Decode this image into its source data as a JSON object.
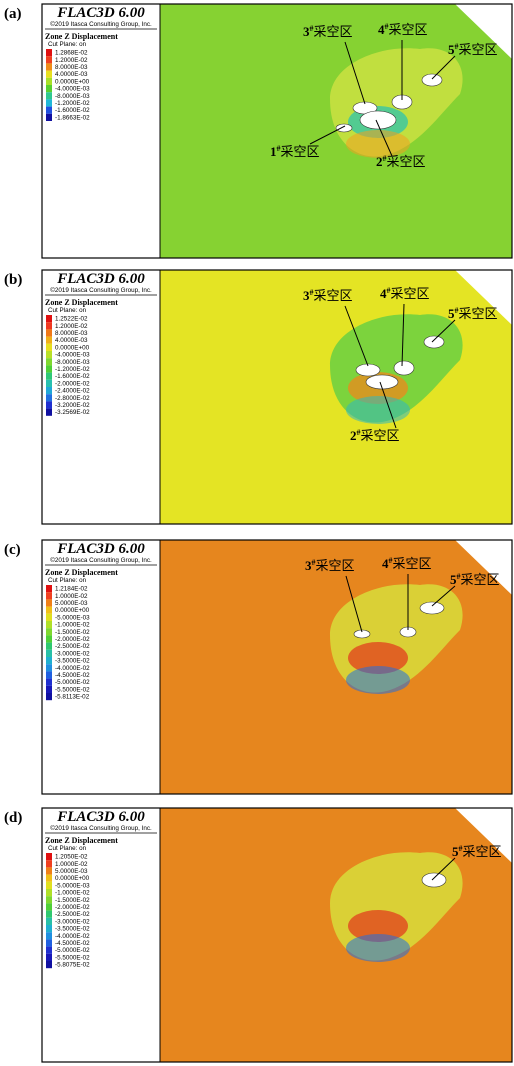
{
  "panels": [
    {
      "label": "(a)",
      "title": "FLAC3D 6.00",
      "copyright": "©2019 Itasca Consulting Group, Inc.",
      "heading": "Zone Z Displacement",
      "cut_plane": "Cut Plane: on",
      "legend": [
        {
          "text": "1.2868E-02",
          "color": "#e01010"
        },
        {
          "text": "1.2000E-02",
          "color": "#f04020"
        },
        {
          "text": "8.0000E-03",
          "color": "#f08c18"
        },
        {
          "text": "4.0000E-03",
          "color": "#e8e020"
        },
        {
          "text": "0.0000E+00",
          "color": "#a8e028"
        },
        {
          "text": "-4.0000E-03",
          "color": "#58d030"
        },
        {
          "text": "-8.0000E-03",
          "color": "#30c890"
        },
        {
          "text": "-1.2000E-02",
          "color": "#20b8d8"
        },
        {
          "text": "-1.6000E-02",
          "color": "#2050e0"
        },
        {
          "text": "-1.8663E-02",
          "color": "#1010a0"
        }
      ],
      "labels": [
        {
          "number": "3",
          "sup": "#",
          "text": "采空区"
        },
        {
          "number": "4",
          "sup": "#",
          "text": "采空区"
        },
        {
          "number": "5",
          "sup": "#",
          "text": "采空区"
        },
        {
          "number": "1",
          "sup": "#",
          "text": "采空区"
        },
        {
          "number": "2",
          "sup": "#",
          "text": "采空区"
        }
      ]
    },
    {
      "label": "(b)",
      "title": "FLAC3D 6.00",
      "copyright": "©2019 Itasca Consulting Group, Inc.",
      "heading": "Zone Z Displacement",
      "cut_plane": "Cut Plane: on",
      "legend": [
        {
          "text": "1.2522E-02",
          "color": "#e01010"
        },
        {
          "text": "1.2000E-02",
          "color": "#f03820"
        },
        {
          "text": "8.0000E-03",
          "color": "#f07818"
        },
        {
          "text": "4.0000E-03",
          "color": "#f0b018"
        },
        {
          "text": "0.0000E+00",
          "color": "#e8e020"
        },
        {
          "text": "-4.0000E-03",
          "color": "#b8e028"
        },
        {
          "text": "-8.0000E-03",
          "color": "#80d830"
        },
        {
          "text": "-1.2000E-02",
          "color": "#50d038"
        },
        {
          "text": "-1.6000E-02",
          "color": "#30c878"
        },
        {
          "text": "-2.0000E-02",
          "color": "#28c0b0"
        },
        {
          "text": "-2.4000E-02",
          "color": "#20a8d8"
        },
        {
          "text": "-2.8000E-02",
          "color": "#2070e0"
        },
        {
          "text": "-3.2000E-02",
          "color": "#2030d0"
        },
        {
          "text": "-3.2569E-02",
          "color": "#1010a0"
        }
      ],
      "labels": [
        {
          "number": "3",
          "sup": "#",
          "text": "采空区"
        },
        {
          "number": "4",
          "sup": "#",
          "text": "采空区"
        },
        {
          "number": "5",
          "sup": "#",
          "text": "采空区"
        },
        {
          "number": "2",
          "sup": "#",
          "text": "采空区"
        }
      ]
    },
    {
      "label": "(c)",
      "title": "FLAC3D 6.00",
      "copyright": "©2019 Itasca Consulting Group, Inc.",
      "heading": "Zone Z Displacement",
      "cut_plane": "Cut Plane: on",
      "legend": [
        {
          "text": "1.2184E-02",
          "color": "#e01010"
        },
        {
          "text": "1.0000E-02",
          "color": "#f04020"
        },
        {
          "text": "5.0000E-03",
          "color": "#f08018"
        },
        {
          "text": "0.0000E+00",
          "color": "#f0c018"
        },
        {
          "text": "-5.0000E-03",
          "color": "#e0e020"
        },
        {
          "text": "-1.0000E-02",
          "color": "#b0e028"
        },
        {
          "text": "-1.5000E-02",
          "color": "#80d830"
        },
        {
          "text": "-2.0000E-02",
          "color": "#50d038"
        },
        {
          "text": "-2.5000E-02",
          "color": "#30c870"
        },
        {
          "text": "-3.0000E-02",
          "color": "#28c0a8"
        },
        {
          "text": "-3.5000E-02",
          "color": "#20b0d0"
        },
        {
          "text": "-4.0000E-02",
          "color": "#2090e0"
        },
        {
          "text": "-4.5000E-02",
          "color": "#2060e0"
        },
        {
          "text": "-5.0000E-02",
          "color": "#2030d0"
        },
        {
          "text": "-5.5000E-02",
          "color": "#1818b8"
        },
        {
          "text": "-5.8113E-02",
          "color": "#1010a0"
        }
      ],
      "labels": [
        {
          "number": "3",
          "sup": "#",
          "text": "采空区"
        },
        {
          "number": "4",
          "sup": "#",
          "text": "采空区"
        },
        {
          "number": "5",
          "sup": "#",
          "text": "采空区"
        }
      ]
    },
    {
      "label": "(d)",
      "title": "FLAC3D 6.00",
      "copyright": "©2019 Itasca Consulting Group, Inc.",
      "heading": "Zone Z Displacement",
      "cut_plane": "Cut Plane: on",
      "legend": [
        {
          "text": "1.2050E-02",
          "color": "#e01010"
        },
        {
          "text": "1.0000E-02",
          "color": "#f04020"
        },
        {
          "text": "5.0000E-03",
          "color": "#f08018"
        },
        {
          "text": "0.0000E+00",
          "color": "#f0c018"
        },
        {
          "text": "-5.0000E-03",
          "color": "#e0e020"
        },
        {
          "text": "-1.0000E-02",
          "color": "#b0e028"
        },
        {
          "text": "-1.5000E-02",
          "color": "#80d830"
        },
        {
          "text": "-2.0000E-02",
          "color": "#50d038"
        },
        {
          "text": "-2.5000E-02",
          "color": "#30c870"
        },
        {
          "text": "-3.0000E-02",
          "color": "#28c0a8"
        },
        {
          "text": "-3.5000E-02",
          "color": "#20b0d0"
        },
        {
          "text": "-4.0000E-02",
          "color": "#2090e0"
        },
        {
          "text": "-4.5000E-02",
          "color": "#2060e0"
        },
        {
          "text": "-5.0000E-02",
          "color": "#2030d0"
        },
        {
          "text": "-5.5000E-02",
          "color": "#1818b8"
        },
        {
          "text": "-5.8075E-02",
          "color": "#1010a0"
        }
      ],
      "labels": [
        {
          "number": "5",
          "sup": "#",
          "text": "采空区"
        }
      ]
    }
  ]
}
